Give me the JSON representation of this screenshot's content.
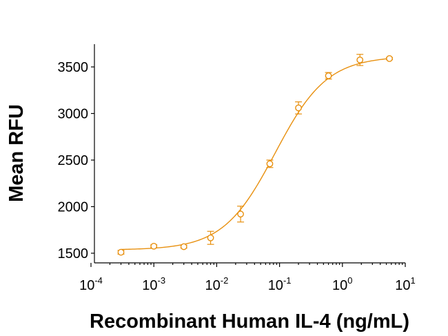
{
  "chart_data": {
    "type": "scatter",
    "title": "",
    "xlabel": "Recombinant Human IL-4 (ng/mL)",
    "ylabel": "Mean RFU",
    "x_scale": "log",
    "xlim": [
      0.0001,
      10
    ],
    "ylim": [
      1400,
      3700
    ],
    "x_ticks": [
      {
        "base": "10",
        "exp": "-4"
      },
      {
        "base": "10",
        "exp": "-3"
      },
      {
        "base": "10",
        "exp": "-2"
      },
      {
        "base": "10",
        "exp": "-1"
      },
      {
        "base": "10",
        "exp": "0"
      },
      {
        "base": "10",
        "exp": "1"
      }
    ],
    "y_ticks": [
      "1500",
      "2000",
      "2500",
      "3000",
      "3500"
    ],
    "grid": false,
    "legend": "none",
    "color": "#E8900F",
    "series": [
      {
        "x": [
          0.0003,
          0.001,
          0.003,
          0.008,
          0.024,
          0.07,
          0.2,
          0.6,
          1.9,
          5.6
        ],
        "y": [
          1510,
          1575,
          1570,
          1665,
          1920,
          2460,
          3060,
          3405,
          3575,
          3590
        ],
        "error": [
          20,
          15,
          15,
          70,
          85,
          40,
          65,
          35,
          60,
          10
        ]
      }
    ],
    "fit_curve": {
      "type": "4PL",
      "bottom": 1535,
      "top": 3615,
      "ec50": 0.085,
      "hill": 1.05
    }
  }
}
